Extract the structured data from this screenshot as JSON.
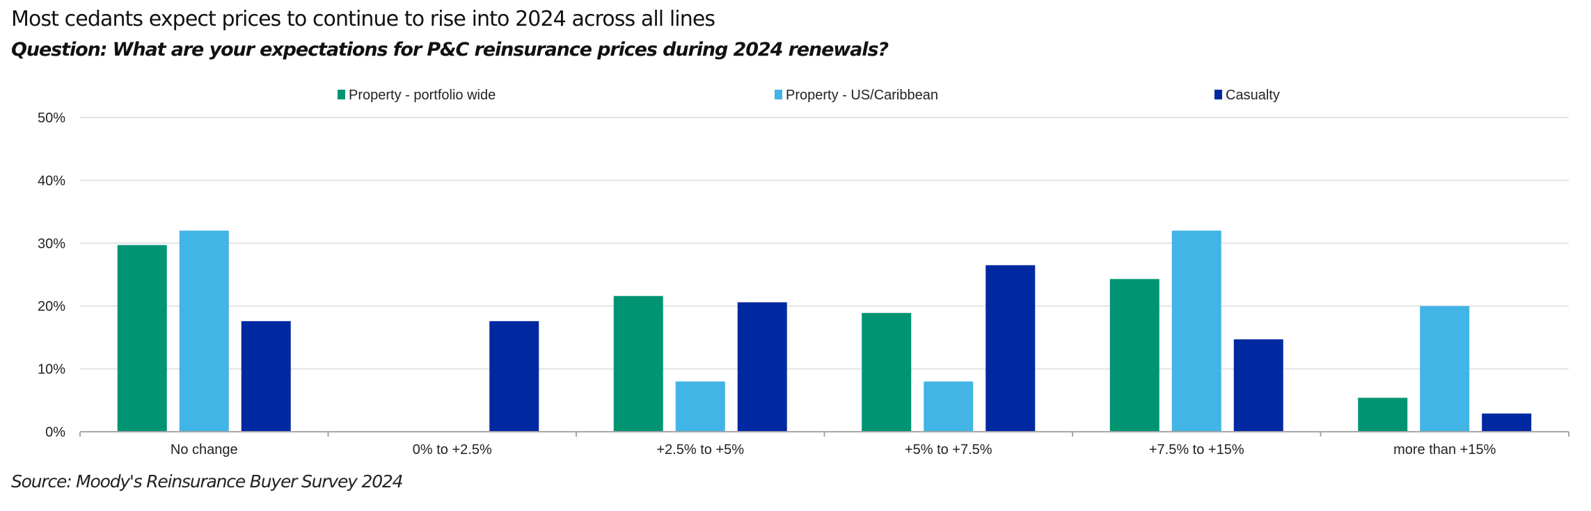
{
  "chart_data": {
    "type": "bar",
    "title": "Most cedants expect prices to continue to rise into 2024 across all lines",
    "subtitle": "Question: What are your expectations for P&C reinsurance prices during 2024 renewals?",
    "source": "Source: Moody's Reinsurance Buyer Survey 2024",
    "xlabel": "",
    "ylabel": "",
    "categories": [
      "No change",
      "0% to +2.5%",
      "+2.5% to +5%",
      "+5% to +7.5%",
      "+7.5% to +15%",
      "more than +15%"
    ],
    "series": [
      {
        "name": "Property - portfolio wide",
        "color": "#009473",
        "values": [
          29.7,
          0,
          21.6,
          18.9,
          24.3,
          5.4
        ]
      },
      {
        "name": "Property - US/Caribbean",
        "color": "#42B4E6",
        "values": [
          32.0,
          0,
          8.0,
          8.0,
          32.0,
          20.0
        ]
      },
      {
        "name": "Casualty",
        "color": "#0029A1",
        "values": [
          17.6,
          17.6,
          20.6,
          26.5,
          14.7,
          2.9
        ]
      }
    ],
    "ylim": [
      0,
      50
    ],
    "yticks": [
      0,
      10,
      20,
      30,
      40,
      50
    ],
    "ytick_labels": [
      "0%",
      "10%",
      "20%",
      "30%",
      "40%",
      "50%"
    ],
    "y_unit": "%",
    "grid": true,
    "legend_position": "top"
  }
}
